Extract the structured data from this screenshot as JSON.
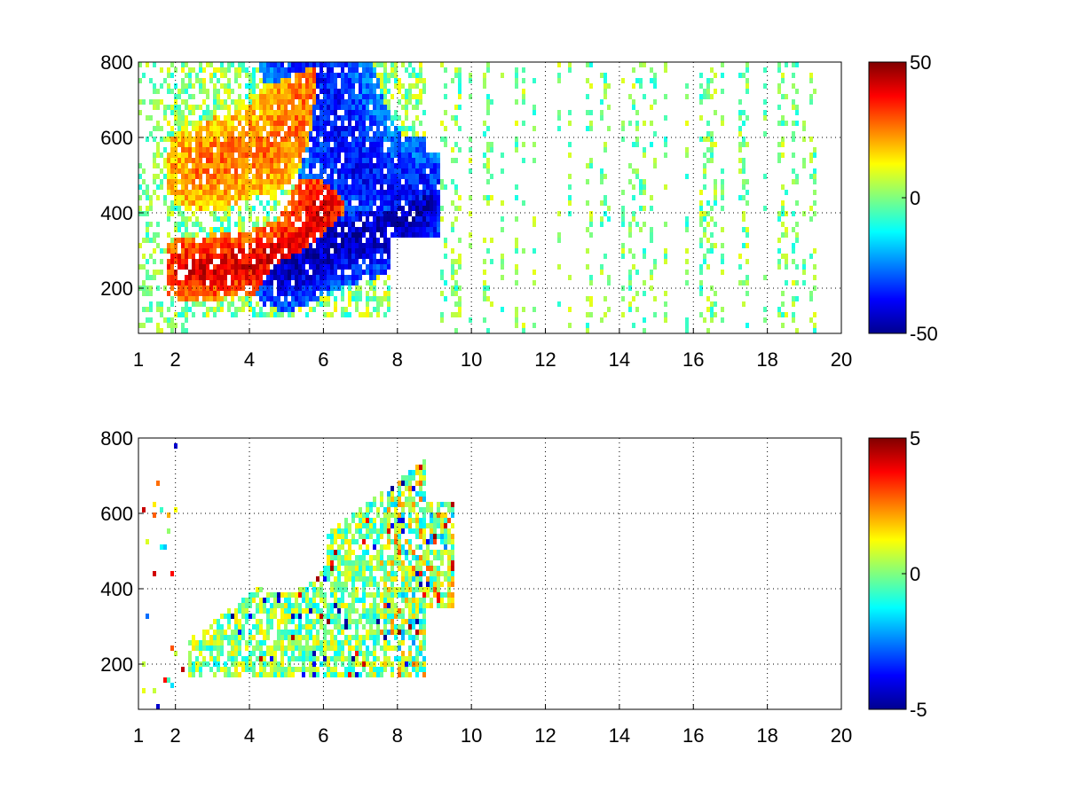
{
  "chart_data": [
    {
      "type": "heatmap",
      "colormap": "jet",
      "xlim": [
        1,
        20
      ],
      "ylim": [
        80,
        800
      ],
      "x_ticks": [
        1,
        2,
        4,
        6,
        8,
        10,
        12,
        14,
        16,
        18,
        20
      ],
      "x_tick_labels": [
        "1",
        "2",
        "4",
        "6",
        "8",
        "10",
        "12",
        "14",
        "16",
        "18",
        "20"
      ],
      "y_ticks": [
        200,
        400,
        600,
        800
      ],
      "y_tick_labels": [
        "200",
        "400",
        "600",
        "800"
      ],
      "grid": true,
      "colorbar": {
        "min": -50,
        "max": 50,
        "ticks": [
          50,
          0,
          -50
        ],
        "tick_labels": [
          "50",
          "0",
          "-50"
        ]
      },
      "features": [
        {
          "name": "positive_band_lower",
          "value": 38,
          "points": [
            [
              2.4,
              250
            ],
            [
              3,
              255
            ],
            [
              4,
              265
            ],
            [
              5,
              295
            ],
            [
              5.5,
              330
            ],
            [
              5.8,
              380
            ],
            [
              6,
              430
            ]
          ],
          "width": 22
        },
        {
          "name": "positive_band_upper",
          "value": 25,
          "points": [
            [
              2.8,
              520
            ],
            [
              3.5,
              545
            ],
            [
              4.2,
              560
            ],
            [
              4.8,
              600
            ],
            [
              5.3,
              650
            ],
            [
              5.6,
              720
            ],
            [
              5.8,
              790
            ]
          ],
          "width": 30
        },
        {
          "name": "negative_band_lower",
          "value": -42,
          "points": [
            [
              5,
              250
            ],
            [
              6,
              300
            ],
            [
              7,
              330
            ],
            [
              8,
              380
            ],
            [
              8.8,
              430
            ]
          ],
          "width": 28
        },
        {
          "name": "negative_band_upper",
          "value": -35,
          "points": [
            [
              5.8,
              790
            ],
            [
              6.2,
              650
            ],
            [
              6.8,
              520
            ],
            [
              7.5,
              470
            ],
            [
              8.5,
              450
            ]
          ],
          "width": 38
        }
      ]
    },
    {
      "type": "heatmap",
      "colormap": "jet",
      "xlim": [
        1,
        20
      ],
      "ylim": [
        80,
        800
      ],
      "x_ticks": [
        1,
        2,
        4,
        6,
        8,
        10,
        12,
        14,
        16,
        18,
        20
      ],
      "x_tick_labels": [
        "1",
        "2",
        "4",
        "6",
        "8",
        "10",
        "12",
        "14",
        "16",
        "18",
        "20"
      ],
      "y_ticks": [
        200,
        400,
        600,
        800
      ],
      "y_tick_labels": [
        "200",
        "400",
        "600",
        "800"
      ],
      "grid": true,
      "colorbar": {
        "min": -5,
        "max": 5,
        "ticks": [
          5,
          0,
          -5
        ],
        "tick_labels": [
          "5",
          "0",
          "-5"
        ]
      },
      "features": [
        {
          "name": "main_region",
          "value": 0,
          "x_range": [
            2.3,
            9.5
          ],
          "y_range": [
            170,
            800
          ]
        }
      ]
    }
  ],
  "colors": {
    "jet": [
      "#00008f",
      "#0000ff",
      "#00ffff",
      "#ffff00",
      "#ff0000",
      "#800000"
    ]
  }
}
